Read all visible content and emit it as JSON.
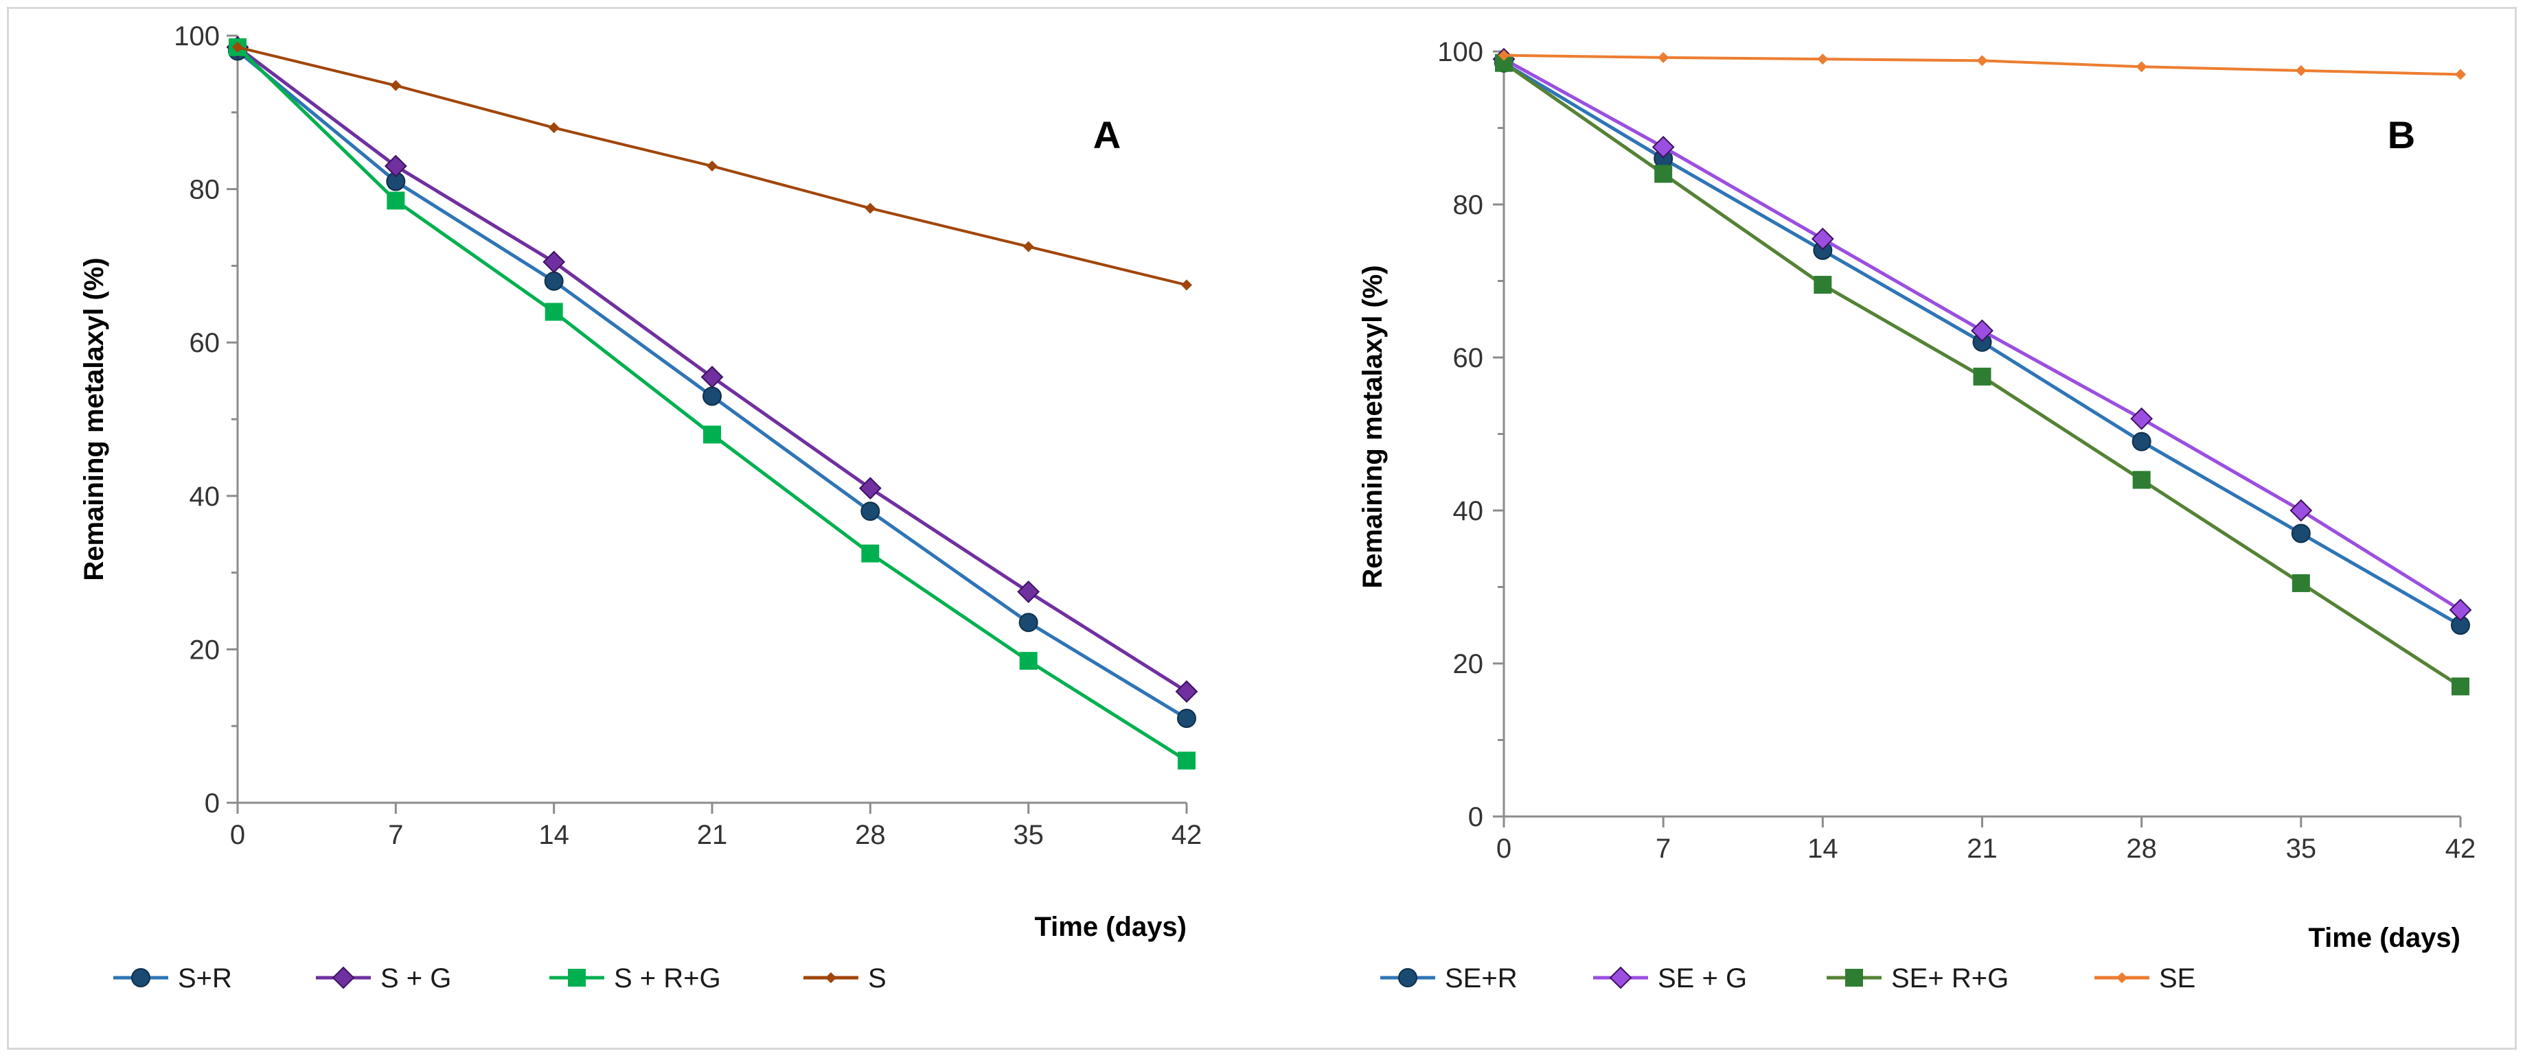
{
  "chart_data": [
    {
      "type": "line",
      "panel_label": "A",
      "x": [
        0,
        7,
        14,
        21,
        28,
        35,
        42
      ],
      "xlabel": "Time (days)",
      "ylabel": "Remaining metalaxyl  (%)",
      "xlim": [
        0,
        42
      ],
      "ylim": [
        0,
        100
      ],
      "x_ticks": [
        "0",
        "7",
        "14",
        "21",
        "28",
        "35",
        "42"
      ],
      "y_ticks": [
        "0",
        "20",
        "40",
        "60",
        "80",
        "100"
      ],
      "grid": false,
      "legend_position": "bottom",
      "series": [
        {
          "name": "S+R",
          "color": "#1a4a72",
          "line_color": "#2e75b6",
          "marker": "circle",
          "values": [
            98,
            81,
            68,
            53,
            38,
            23.5,
            11
          ]
        },
        {
          "name": "S + G",
          "color": "#7030a0",
          "line_color": "#7030a0",
          "marker": "diamond",
          "values": [
            98.5,
            83,
            70.5,
            55.5,
            41,
            27.5,
            14.5
          ]
        },
        {
          "name": "S + R+G",
          "color": "#00b050",
          "line_color": "#00b050",
          "marker": "square",
          "values": [
            98.5,
            78.5,
            64,
            48,
            32.5,
            18.5,
            5.5
          ]
        },
        {
          "name": "S",
          "color": "#a0460a",
          "line_color": "#a0460a",
          "marker": "small-diamond",
          "values": [
            98.5,
            93.5,
            88,
            83,
            77.5,
            72.5,
            67.5
          ]
        }
      ]
    },
    {
      "type": "line",
      "panel_label": "B",
      "x": [
        0,
        7,
        14,
        21,
        28,
        35,
        42
      ],
      "xlabel": "Time (days)",
      "ylabel": "Remaining metalaxyl  (%)",
      "xlim": [
        0,
        42
      ],
      "ylim": [
        0,
        100
      ],
      "x_ticks": [
        "0",
        "7",
        "14",
        "21",
        "28",
        "35",
        "42"
      ],
      "y_ticks": [
        "0",
        "20",
        "40",
        "60",
        "80",
        "100"
      ],
      "grid": false,
      "legend_position": "bottom",
      "series": [
        {
          "name": "SE+R",
          "color": "#1a4a72",
          "line_color": "#2e75b6",
          "marker": "circle",
          "values": [
            98.5,
            86,
            74,
            62,
            49,
            37,
            25
          ]
        },
        {
          "name": "SE + G",
          "color": "#9b4fe0",
          "line_color": "#9b4fe0",
          "marker": "diamond",
          "values": [
            99,
            87.5,
            75.5,
            63.5,
            52,
            40,
            27
          ]
        },
        {
          "name": "SE+ R+G",
          "color": "#2e7d32",
          "line_color": "#548235",
          "marker": "square",
          "values": [
            98.5,
            84,
            69.5,
            57.5,
            44,
            30.5,
            17
          ]
        },
        {
          "name": "SE",
          "color": "#ed7d31",
          "line_color": "#ed7d31",
          "marker": "small-diamond",
          "values": [
            99.5,
            99.2,
            99,
            98.8,
            98,
            97.5,
            97
          ]
        }
      ]
    }
  ]
}
